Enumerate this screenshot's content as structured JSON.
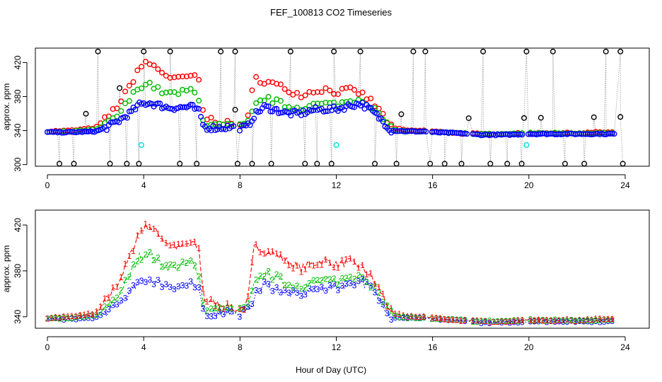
{
  "title": "FEF_100813  CO2 Timeseries",
  "xlabel": "Hour of Day (UTC)",
  "colors": {
    "s1": "#ff0000",
    "s2": "#00bb00",
    "s3": "#0000ff",
    "raw": "#000000",
    "cyan": "#00dddd",
    "line": "#999999"
  },
  "chart_data": [
    {
      "type": "scatter",
      "panel": "top",
      "ylabel": "approx. ppm",
      "xlim": [
        -0.5,
        25
      ],
      "ylim": [
        298,
        437
      ],
      "xticks": [
        0,
        4,
        8,
        12,
        16,
        20,
        24
      ],
      "yticks": [
        300,
        340,
        380,
        420
      ],
      "series_names": [
        "1",
        "2",
        "3"
      ],
      "outliers_high": [
        2.1,
        4.0,
        5.1,
        7.2,
        7.8,
        10.1,
        11.9,
        13.0,
        15.2,
        15.7,
        18.1,
        19.9,
        21.0,
        23.2,
        23.8
      ],
      "outliers_low": [
        0.5,
        1.1,
        2.6,
        3.3,
        3.8,
        5.5,
        6.2,
        7.9,
        8.5,
        9.3,
        10.7,
        11.2,
        11.8,
        13.6,
        14.5,
        15.9,
        16.5,
        17.2,
        18.4,
        19.1,
        19.7,
        21.5,
        22.3,
        23.9
      ],
      "outliers_mid": [
        1.6,
        3.0,
        7.8,
        14.7,
        17.5,
        19.8,
        20.5,
        22.7,
        23.8
      ],
      "cyan_points": [
        [
          3.9,
          323
        ],
        [
          12.0,
          323
        ],
        [
          19.9,
          323
        ]
      ]
    },
    {
      "type": "scatter",
      "panel": "bottom",
      "ylabel": "approx. ppm",
      "xlim": [
        -0.5,
        25
      ],
      "ylim": [
        330,
        433
      ],
      "xticks": [
        0,
        4,
        8,
        12,
        16,
        20,
        24
      ],
      "yticks": [
        340,
        380,
        420
      ],
      "series_names": [
        "1",
        "2",
        "3"
      ]
    }
  ],
  "profile": {
    "s1": [
      [
        0,
        339
      ],
      [
        1,
        340
      ],
      [
        2,
        343
      ],
      [
        2.5,
        356
      ],
      [
        3,
        372
      ],
      [
        3.5,
        396
      ],
      [
        3.8,
        414
      ],
      [
        4.2,
        420
      ],
      [
        4.6,
        412
      ],
      [
        5,
        404
      ],
      [
        5.5,
        400
      ],
      [
        6,
        405
      ],
      [
        6.3,
        398
      ],
      [
        6.5,
        355
      ],
      [
        7,
        352
      ],
      [
        7.5,
        348
      ],
      [
        7.9,
        346
      ],
      [
        8.3,
        350
      ],
      [
        8.6,
        402
      ],
      [
        9,
        398
      ],
      [
        9.5,
        394
      ],
      [
        10,
        388
      ],
      [
        10.5,
        382
      ],
      [
        11,
        386
      ],
      [
        11.5,
        389
      ],
      [
        12,
        385
      ],
      [
        12.5,
        388
      ],
      [
        13,
        384
      ],
      [
        13.4,
        376
      ],
      [
        13.9,
        360
      ],
      [
        14.3,
        343
      ],
      [
        15,
        340
      ],
      [
        15.7,
        340
      ],
      [
        16,
        339
      ],
      [
        17,
        337
      ],
      [
        18,
        336
      ],
      [
        19,
        336
      ],
      [
        20,
        337
      ],
      [
        21,
        337
      ],
      [
        22,
        337
      ],
      [
        23,
        338
      ],
      [
        23.6,
        338
      ]
    ],
    "s2": [
      [
        0,
        338
      ],
      [
        1,
        339
      ],
      [
        2,
        341
      ],
      [
        2.5,
        348
      ],
      [
        3,
        360
      ],
      [
        3.5,
        380
      ],
      [
        3.8,
        392
      ],
      [
        4.2,
        396
      ],
      [
        4.6,
        388
      ],
      [
        5,
        383
      ],
      [
        5.5,
        384
      ],
      [
        6,
        388
      ],
      [
        6.3,
        378
      ],
      [
        6.5,
        348
      ],
      [
        7,
        345
      ],
      [
        7.5,
        346
      ],
      [
        7.9,
        344
      ],
      [
        8.3,
        347
      ],
      [
        8.6,
        368
      ],
      [
        9,
        378
      ],
      [
        9.5,
        374
      ],
      [
        10,
        368
      ],
      [
        10.5,
        367
      ],
      [
        11,
        370
      ],
      [
        11.5,
        371
      ],
      [
        12,
        371
      ],
      [
        12.5,
        374
      ],
      [
        13,
        378
      ],
      [
        13.4,
        370
      ],
      [
        13.9,
        355
      ],
      [
        14.3,
        341
      ],
      [
        15,
        339
      ],
      [
        15.7,
        339
      ],
      [
        16,
        338
      ],
      [
        17,
        337
      ],
      [
        18,
        336
      ],
      [
        19,
        336
      ],
      [
        20,
        337
      ],
      [
        21,
        337
      ],
      [
        22,
        337
      ],
      [
        23,
        337
      ],
      [
        23.6,
        337
      ]
    ],
    "s3": [
      [
        0,
        338
      ],
      [
        1,
        338
      ],
      [
        2,
        339
      ],
      [
        2.5,
        344
      ],
      [
        3,
        352
      ],
      [
        3.5,
        362
      ],
      [
        3.8,
        370
      ],
      [
        4.2,
        373
      ],
      [
        4.6,
        370
      ],
      [
        5,
        367
      ],
      [
        5.5,
        367
      ],
      [
        6,
        368
      ],
      [
        6.3,
        362
      ],
      [
        6.5,
        344
      ],
      [
        7,
        343
      ],
      [
        7.5,
        344
      ],
      [
        7.9,
        343
      ],
      [
        8.3,
        344
      ],
      [
        8.6,
        358
      ],
      [
        9,
        368
      ],
      [
        9.5,
        364
      ],
      [
        10,
        360
      ],
      [
        10.5,
        360
      ],
      [
        11,
        364
      ],
      [
        11.5,
        365
      ],
      [
        12,
        365
      ],
      [
        12.5,
        369
      ],
      [
        13,
        372
      ],
      [
        13.4,
        365
      ],
      [
        13.9,
        352
      ],
      [
        14.3,
        340
      ],
      [
        15,
        339
      ],
      [
        15.7,
        339
      ],
      [
        16,
        338
      ],
      [
        17,
        337
      ],
      [
        18,
        335
      ],
      [
        19,
        335
      ],
      [
        20,
        336
      ],
      [
        21,
        336
      ],
      [
        22,
        336
      ],
      [
        23,
        336
      ],
      [
        23.6,
        336
      ]
    ]
  },
  "gaps": [
    [
      7.75,
      7.95
    ],
    [
      15.75,
      15.95
    ],
    [
      17.5,
      17.65
    ],
    [
      19.75,
      19.92
    ]
  ]
}
